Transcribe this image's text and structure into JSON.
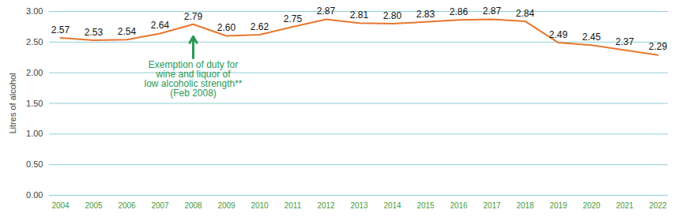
{
  "chart_data": {
    "type": "line",
    "categories": [
      "2004",
      "2005",
      "2006",
      "2007",
      "2008",
      "2009",
      "2010",
      "2011",
      "2012",
      "2013",
      "2014",
      "2015",
      "2016",
      "2017",
      "2018",
      "2019",
      "2020",
      "2021",
      "2022"
    ],
    "values": [
      2.57,
      2.53,
      2.54,
      2.64,
      2.79,
      2.6,
      2.62,
      2.75,
      2.87,
      2.81,
      2.8,
      2.83,
      2.86,
      2.87,
      2.84,
      2.49,
      2.45,
      2.37,
      2.29
    ],
    "value_labels": [
      "2.57",
      "2.53",
      "2.54",
      "2.64",
      "2.79",
      "2.60",
      "2.62",
      "2.75",
      "2.87",
      "2.81",
      "2.80",
      "2.83",
      "2.86",
      "2.87",
      "2.84",
      "2.49",
      "2.45",
      "2.37",
      "2.29"
    ],
    "data_labels": true,
    "color": "#e8772e",
    "y_label": "Litres of alcohol",
    "ylim": [
      0,
      3
    ],
    "yticks": [
      {
        "value": 0,
        "label": "0.00"
      },
      {
        "value": 0.5,
        "label": "0.50"
      },
      {
        "value": 1,
        "label": "1.00"
      },
      {
        "value": 1.5,
        "label": "1.50"
      },
      {
        "value": 2,
        "label": "2.00"
      },
      {
        "value": 2.5,
        "label": "2.50"
      },
      {
        "value": 3,
        "label": "3.00"
      }
    ],
    "grid": true,
    "annotations": [
      {
        "text": "Exemption of duty for\nwine and liquor of\nlow alcoholic strength**\n(Feb 2008)",
        "x": "2008"
      }
    ]
  }
}
